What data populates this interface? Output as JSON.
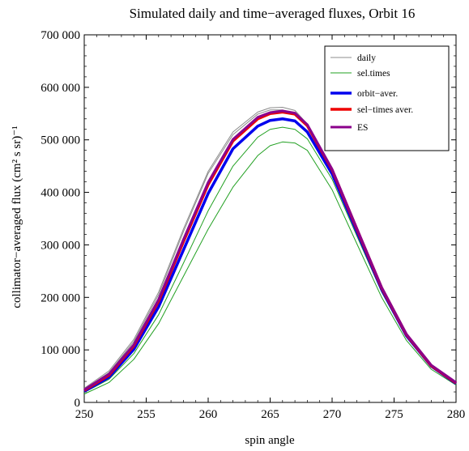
{
  "chart_data": {
    "type": "line",
    "title": "Simulated daily and time−averaged fluxes, Orbit 16",
    "xlabel": "spin angle",
    "ylabel": "collimator−averaged flux (cm² s sr)⁻¹",
    "xlim": [
      250,
      280
    ],
    "ylim": [
      0,
      700000
    ],
    "x_ticks": [
      "250",
      "255",
      "260",
      "265",
      "270",
      "275",
      "280"
    ],
    "y_ticks": [
      "0",
      "100 000",
      "200 000",
      "300 000",
      "400 000",
      "500 000",
      "600 000",
      "700 000"
    ],
    "grid": false,
    "legend_position": "top-right",
    "x": [
      250,
      252,
      254,
      256,
      258,
      260,
      262,
      264,
      265,
      266,
      267,
      268,
      270,
      272,
      274,
      276,
      278,
      280
    ],
    "series": [
      {
        "name": "daily",
        "color": "#8c8c8c",
        "width": 1,
        "values": [
          27000,
          60000,
          120000,
          210000,
          330000,
          440000,
          515000,
          553000,
          561000,
          562000,
          556000,
          530000,
          440000,
          325000,
          215000,
          128000,
          70000,
          36000
        ]
      },
      {
        "name": "daily",
        "color": "#8c8c8c",
        "width": 1,
        "values": [
          25000,
          57000,
          116000,
          205000,
          325000,
          436000,
          510000,
          549000,
          557000,
          557000,
          551000,
          525000,
          436000,
          322000,
          212000,
          126000,
          69000,
          35000
        ]
      },
      {
        "name": "sel.times",
        "color": "#22a022",
        "width": 1,
        "values": [
          16000,
          38000,
          82000,
          150000,
          240000,
          330000,
          410000,
          470000,
          489000,
          496000,
          494000,
          480000,
          405000,
          302000,
          200000,
          118000,
          63000,
          33000
        ]
      },
      {
        "name": "sel.times",
        "color": "#22a022",
        "width": 1,
        "values": [
          19000,
          44000,
          93000,
          167000,
          265000,
          365000,
          450000,
          505000,
          520000,
          524000,
          520000,
          502000,
          425000,
          317000,
          210000,
          124000,
          67000,
          35000
        ]
      },
      {
        "name": "orbit−aver.",
        "color": "#0000ee",
        "width": 3.5,
        "values": [
          21000,
          48000,
          101000,
          182000,
          290000,
          398000,
          483000,
          526000,
          537000,
          540000,
          536000,
          515000,
          435000,
          325000,
          215000,
          127000,
          69000,
          36000
        ]
      },
      {
        "name": "sel−times aver.",
        "color": "#ee0000",
        "width": 3.5,
        "values": [
          23000,
          52000,
          108000,
          193000,
          306000,
          415000,
          498000,
          540000,
          550000,
          553000,
          549000,
          527000,
          443000,
          330000,
          218000,
          129000,
          70000,
          37000
        ]
      },
      {
        "name": "ES",
        "color": "#8b008b",
        "width": 3,
        "values": [
          24000,
          54000,
          110000,
          196000,
          310000,
          419000,
          501000,
          543000,
          552000,
          555000,
          551000,
          529000,
          444000,
          331000,
          219000,
          130000,
          71000,
          38000
        ]
      }
    ],
    "legend": [
      {
        "label": "daily",
        "color": "#8c8c8c",
        "width": 1
      },
      {
        "label": "sel.times",
        "color": "#22a022",
        "width": 1
      },
      {
        "label": "orbit−aver.",
        "color": "#0000ee",
        "width": 3.5
      },
      {
        "label": "sel−times aver.",
        "color": "#ee0000",
        "width": 3.5
      },
      {
        "label": "ES",
        "color": "#8b008b",
        "width": 3
      }
    ]
  }
}
